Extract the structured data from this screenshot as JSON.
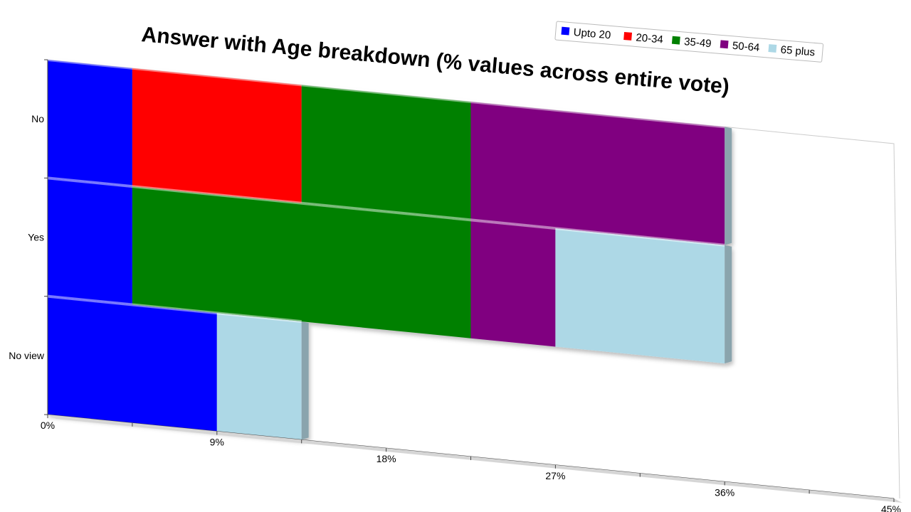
{
  "chart_data": {
    "type": "bar",
    "orientation": "horizontal",
    "stacked": true,
    "title": "Answer with Age breakdown (% values across entire vote)",
    "categories": [
      "No",
      "Yes",
      "No view"
    ],
    "series": [
      {
        "name": "Upto 20",
        "color": "#0000ff",
        "values": [
          4.5,
          4.5,
          9
        ]
      },
      {
        "name": "20-34",
        "color": "#ff0000",
        "values": [
          9,
          0,
          0
        ]
      },
      {
        "name": "35-49",
        "color": "#008000",
        "values": [
          9,
          18,
          0
        ]
      },
      {
        "name": "50-64",
        "color": "#800080",
        "values": [
          13.5,
          4.5,
          0
        ]
      },
      {
        "name": "65 plus",
        "color": "#add8e6",
        "values": [
          0,
          9,
          4.5
        ]
      }
    ],
    "x_ticks": [
      "0%",
      "9%",
      "18%",
      "27%",
      "36%",
      "45%"
    ],
    "xlim": [
      0,
      45
    ],
    "legend_position": "top-right",
    "grid": false
  }
}
